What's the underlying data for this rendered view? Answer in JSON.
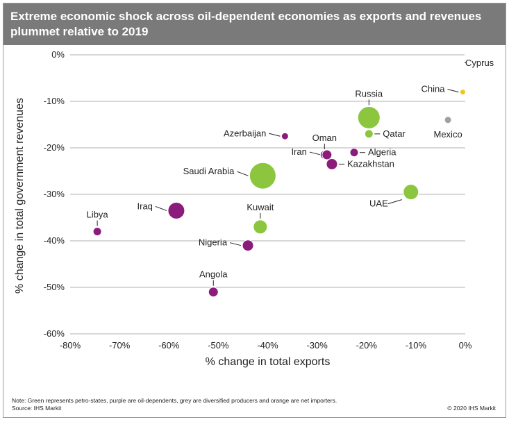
{
  "title": "Extreme economic shock across oil-dependent economies as exports and revenues plummet relative to 2019",
  "note": "Note: Green represents petro-states, purple are oil-dependents, grey are diversified producers and orange are net importers.",
  "source": "Source: IHS Markit",
  "copyright": "© 2020 IHS Markit",
  "colors": {
    "petro-state": "#8cc63f",
    "oil-dependent": "#8b1c7c",
    "diversified": "#a0a0a0",
    "net-importer": "#f5c518",
    "title_bar": "#7a7a7a",
    "gridline": "#b0b0b0"
  },
  "chart_data": {
    "type": "scatter",
    "title": "Extreme economic shock across oil-dependent economies as exports and revenues plummet relative to 2019",
    "xlabel": "% change in total exports",
    "ylabel": "% change in total government revenues",
    "xlim": [
      -80,
      0
    ],
    "ylim": [
      -60,
      0
    ],
    "xticks": [
      "-80%",
      "-70%",
      "-60%",
      "-50%",
      "-40%",
      "-30%",
      "-20%",
      "-10%",
      "0%"
    ],
    "yticks": [
      "0%",
      "-10%",
      "-20%",
      "-30%",
      "-40%",
      "-50%",
      "-60%"
    ],
    "grid": "horizontal",
    "points": [
      {
        "label": "Cyprus",
        "x": 0,
        "y": 0,
        "group": "net-importer",
        "size": 1,
        "label_pos": "below-right"
      },
      {
        "label": "China",
        "x": -0.5,
        "y": -8,
        "group": "net-importer",
        "size": 4,
        "label_pos": "left"
      },
      {
        "label": "Mexico",
        "x": -3.5,
        "y": -14,
        "group": "diversified",
        "size": 5,
        "label_pos": "below"
      },
      {
        "label": "Russia",
        "x": -19.5,
        "y": -13.5,
        "group": "petro-state",
        "size": 16,
        "label_pos": "above"
      },
      {
        "label": "Qatar",
        "x": -19.5,
        "y": -17,
        "group": "petro-state",
        "size": 6,
        "label_pos": "right"
      },
      {
        "label": "Oman",
        "x": -28.5,
        "y": -21.5,
        "group": "oil-dependent",
        "size": 6,
        "label_pos": "above"
      },
      {
        "label": "Iran",
        "x": -28,
        "y": -21.5,
        "group": "oil-dependent",
        "size": 7,
        "label_pos": "left"
      },
      {
        "label": "Algeria",
        "x": -22.5,
        "y": -21,
        "group": "oil-dependent",
        "size": 6,
        "label_pos": "right"
      },
      {
        "label": "Kazakhstan",
        "x": -27,
        "y": -23.5,
        "group": "oil-dependent",
        "size": 8,
        "label_pos": "right"
      },
      {
        "label": "Azerbaijan",
        "x": -36.5,
        "y": -17.5,
        "group": "oil-dependent",
        "size": 5,
        "label_pos": "left"
      },
      {
        "label": "Saudi Arabia",
        "x": -41,
        "y": -26,
        "group": "petro-state",
        "size": 19,
        "label_pos": "left"
      },
      {
        "label": "UAE",
        "x": -11,
        "y": -29.5,
        "group": "petro-state",
        "size": 11,
        "label_pos": "below-left"
      },
      {
        "label": "Iraq",
        "x": -58.5,
        "y": -33.5,
        "group": "oil-dependent",
        "size": 12,
        "label_pos": "left"
      },
      {
        "label": "Libya",
        "x": -74.5,
        "y": -38,
        "group": "oil-dependent",
        "size": 6,
        "label_pos": "above"
      },
      {
        "label": "Kuwait",
        "x": -41.5,
        "y": -37,
        "group": "petro-state",
        "size": 10,
        "label_pos": "above"
      },
      {
        "label": "Nigeria",
        "x": -44,
        "y": -41,
        "group": "oil-dependent",
        "size": 8,
        "label_pos": "left"
      },
      {
        "label": "Angola",
        "x": -51,
        "y": -51,
        "group": "oil-dependent",
        "size": 7,
        "label_pos": "above"
      }
    ]
  }
}
